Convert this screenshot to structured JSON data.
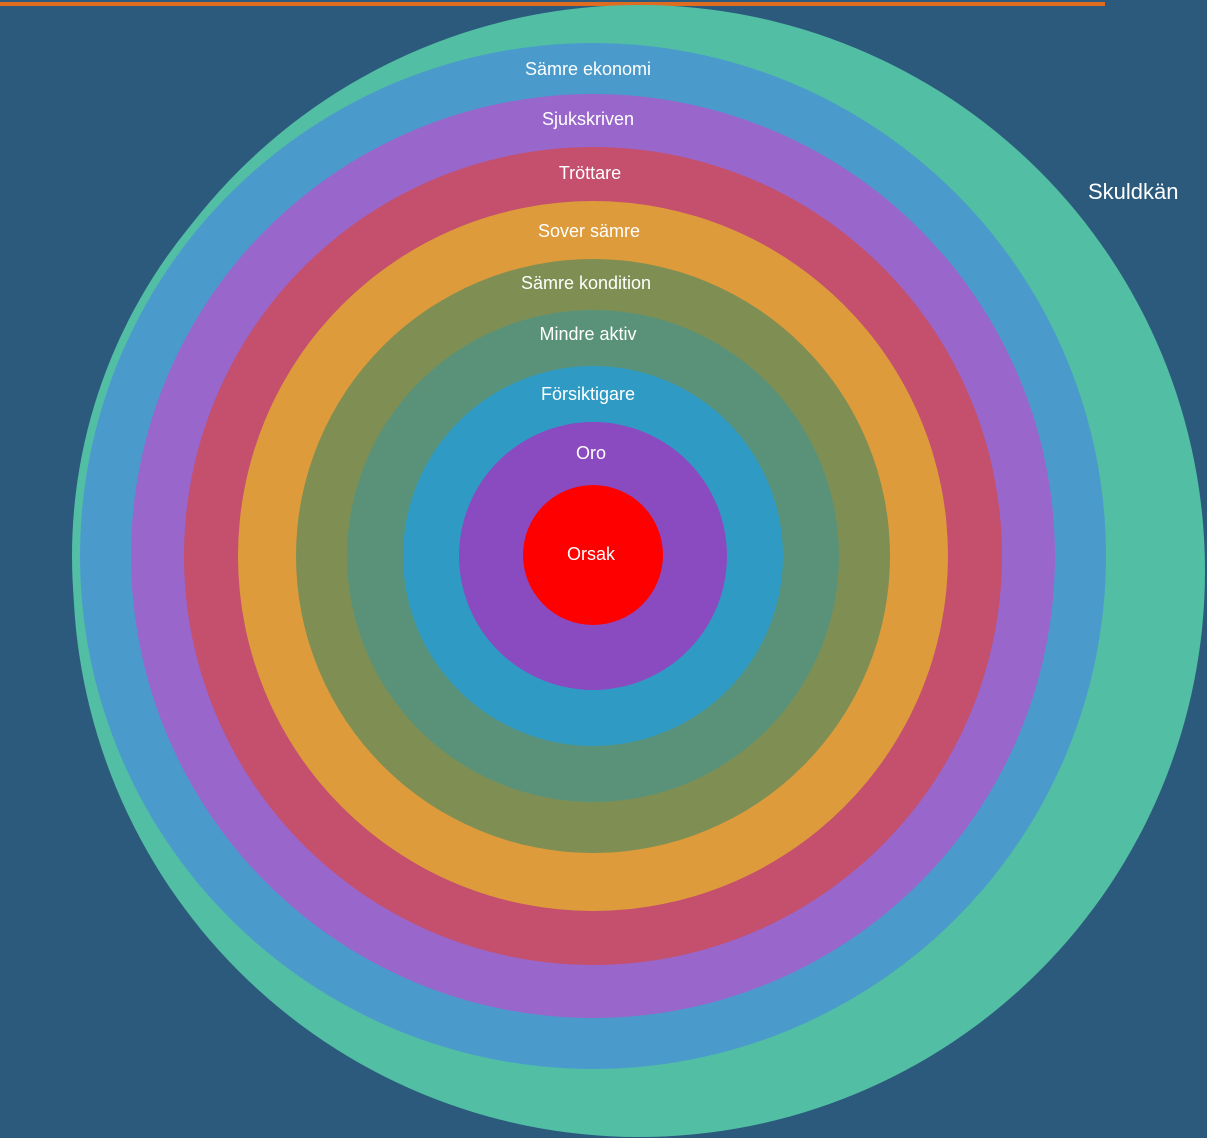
{
  "outer_label": "Skuldkän",
  "rings": [
    "Sämre ekonomi",
    "Sjukskriven",
    "Tröttare",
    "Sover sämre",
    "Sämre kondition",
    "Mindre aktiv",
    "Försiktigare",
    "Oro"
  ],
  "core": "Orsak"
}
